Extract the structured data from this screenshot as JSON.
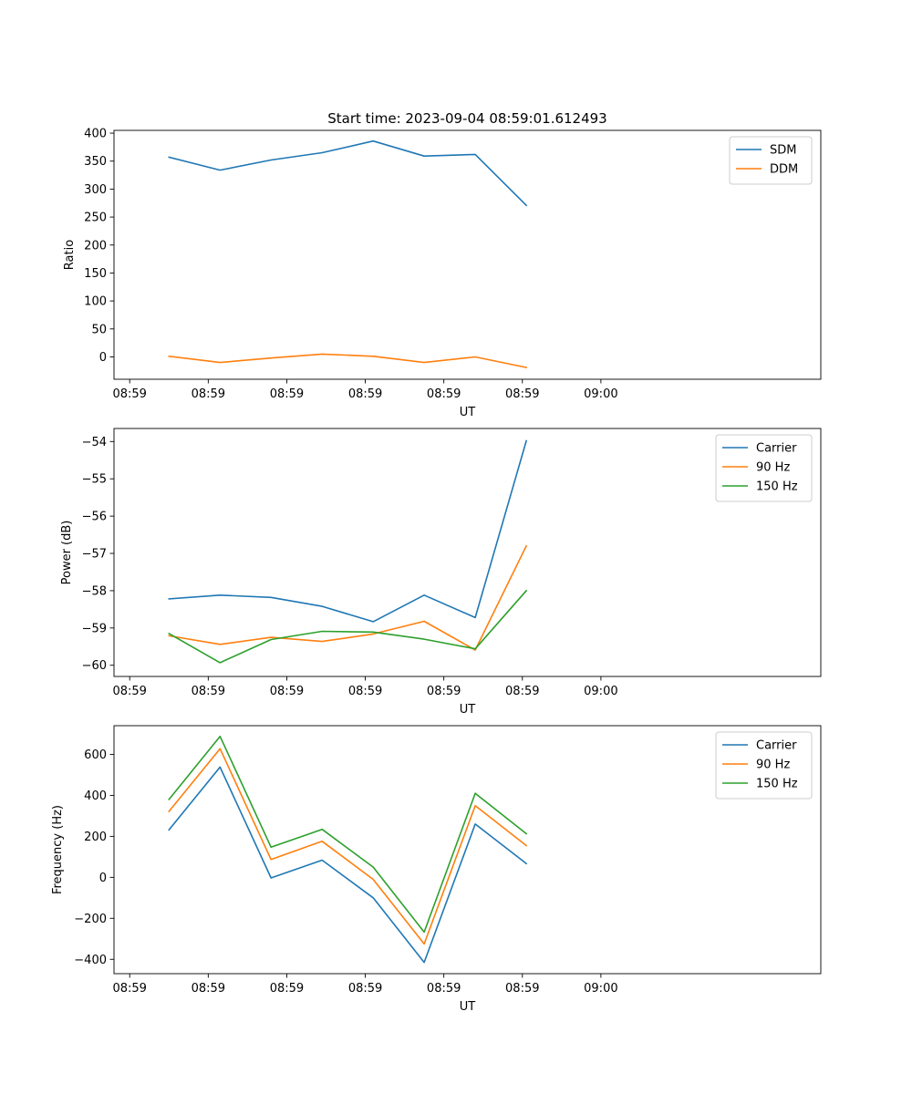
{
  "chart_data": [
    {
      "type": "line",
      "title": "Start time: 2023-09-04 08:59:01.612493",
      "xlabel": "UT",
      "ylabel": "Ratio",
      "xtick_labels": [
        "08:59",
        "08:59",
        "08:59",
        "08:59",
        "08:59",
        "08:59",
        "09:00"
      ],
      "xlim": [
        -0.2,
        8.8
      ],
      "x": [
        0.5,
        1.15,
        1.8,
        2.45,
        3.1,
        3.75,
        4.4,
        5.05
      ],
      "ylim": [
        -40,
        405
      ],
      "yticks": [
        0,
        50,
        100,
        150,
        200,
        250,
        300,
        350,
        400
      ],
      "legend_position": "upper right",
      "series": [
        {
          "name": "SDM",
          "color": "#1f77b4",
          "values": [
            357,
            334,
            352,
            365,
            386,
            359,
            362,
            271
          ]
        },
        {
          "name": "DDM",
          "color": "#ff7f0e",
          "values": [
            1,
            -10,
            -2,
            5,
            1,
            -10,
            0,
            -19
          ]
        }
      ]
    },
    {
      "type": "line",
      "title": "",
      "xlabel": "UT",
      "ylabel": "Power (dB)",
      "xtick_labels": [
        "08:59",
        "08:59",
        "08:59",
        "08:59",
        "08:59",
        "08:59",
        "09:00"
      ],
      "xlim": [
        -0.2,
        8.8
      ],
      "x": [
        0.5,
        1.15,
        1.8,
        2.45,
        3.1,
        3.75,
        4.4,
        5.05
      ],
      "ylim": [
        -60.3,
        -53.65
      ],
      "yticks": [
        -60,
        -59,
        -58,
        -57,
        -56,
        -55,
        -54
      ],
      "ytick_labels": [
        "−60",
        "−59",
        "−58",
        "−57",
        "−56",
        "−55",
        "−54"
      ],
      "legend_position": "upper right",
      "series": [
        {
          "name": "Carrier",
          "color": "#1f77b4",
          "values": [
            -58.22,
            -58.12,
            -58.18,
            -58.42,
            -58.83,
            -58.12,
            -58.72,
            -53.98
          ]
        },
        {
          "name": "90 Hz",
          "color": "#ff7f0e",
          "values": [
            -59.21,
            -59.44,
            -59.25,
            -59.36,
            -59.16,
            -58.82,
            -59.59,
            -56.8
          ]
        },
        {
          "name": "150 Hz",
          "color": "#2ca02c",
          "values": [
            -59.15,
            -59.93,
            -59.31,
            -59.09,
            -59.11,
            -59.3,
            -59.56,
            -58.0
          ]
        }
      ]
    },
    {
      "type": "line",
      "title": "",
      "xlabel": "UT",
      "ylabel": "Frequency (Hz)",
      "xtick_labels": [
        "08:59",
        "08:59",
        "08:59",
        "08:59",
        "08:59",
        "08:59",
        "09:00"
      ],
      "xlim": [
        -0.2,
        8.8
      ],
      "x": [
        0.5,
        1.15,
        1.8,
        2.45,
        3.1,
        3.75,
        4.4,
        5.05
      ],
      "ylim": [
        -470,
        740
      ],
      "yticks": [
        -400,
        -200,
        0,
        200,
        400,
        600
      ],
      "ytick_labels": [
        "−400",
        "−200",
        "0",
        "200",
        "400",
        "600"
      ],
      "legend_position": "upper right",
      "series": [
        {
          "name": "Carrier",
          "color": "#1f77b4",
          "values": [
            232,
            538,
            -3,
            84,
            -100,
            -415,
            260,
            67
          ]
        },
        {
          "name": "90 Hz",
          "color": "#ff7f0e",
          "values": [
            322,
            628,
            87,
            176,
            -10,
            -325,
            350,
            155
          ]
        },
        {
          "name": "150 Hz",
          "color": "#2ca02c",
          "values": [
            380,
            688,
            147,
            234,
            50,
            -267,
            410,
            213
          ]
        }
      ]
    }
  ]
}
